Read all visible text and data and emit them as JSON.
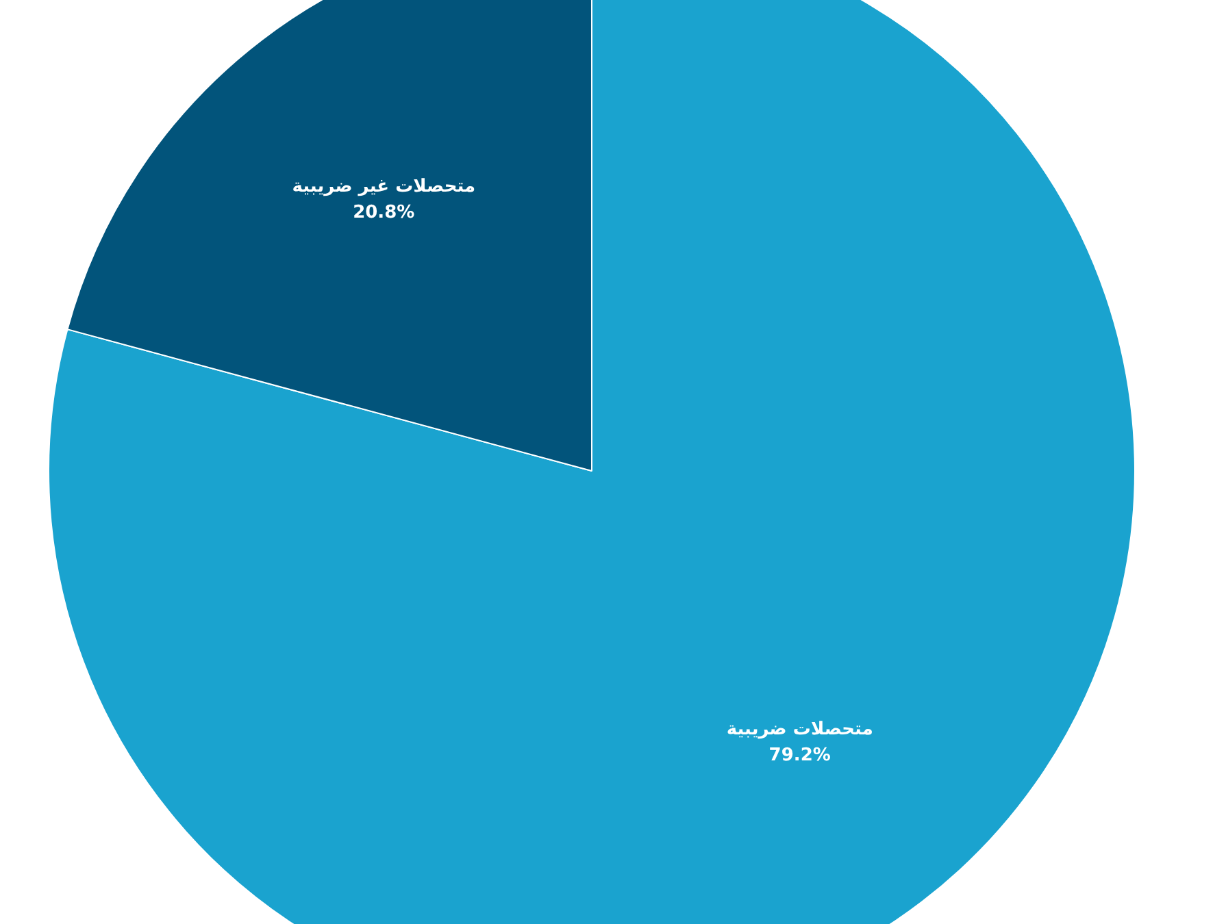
{
  "chart_data": {
    "type": "pie",
    "categories": [
      "متحصلات ضريبية",
      "متحصلات غير ضريبية"
    ],
    "values": [
      79.2,
      20.8
    ],
    "colors": [
      "#1aa3cf",
      "#02547b"
    ],
    "value_labels": [
      "79.2%",
      "20.8%"
    ],
    "legend": false
  }
}
